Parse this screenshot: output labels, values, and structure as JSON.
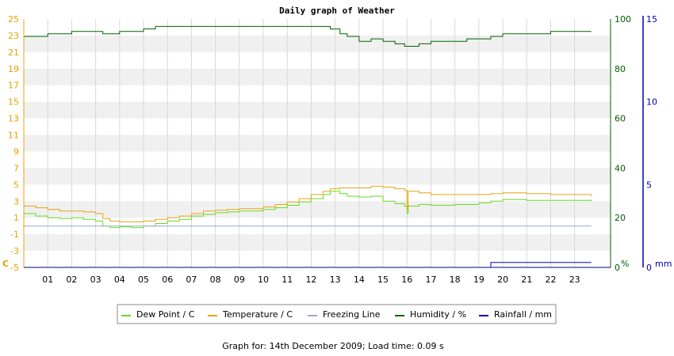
{
  "chart_data": {
    "type": "line",
    "title": "Daily graph of Weather",
    "x_ticks": [
      "01",
      "02",
      "03",
      "04",
      "05",
      "06",
      "07",
      "08",
      "09",
      "10",
      "11",
      "12",
      "13",
      "14",
      "15",
      "16",
      "17",
      "18",
      "19",
      "20",
      "21",
      "22",
      "23"
    ],
    "y_left": {
      "label": "C",
      "ticks": [
        25,
        23,
        21,
        19,
        17,
        15,
        13,
        11,
        9,
        7,
        5,
        3,
        1,
        -1,
        -3,
        -5
      ],
      "range": [
        -5,
        25
      ]
    },
    "y_humidity": {
      "label": "%",
      "ticks": [
        100,
        80,
        60,
        40,
        20,
        0
      ],
      "range": [
        0,
        100
      ]
    },
    "y_rain": {
      "label": "mm",
      "ticks": [
        15,
        10,
        5,
        0
      ],
      "range": [
        0,
        15
      ]
    },
    "grid": true,
    "legend_position": "bottom",
    "series": [
      {
        "name": "Dew Point / C",
        "axis": "left",
        "color": "#66dd22",
        "points": [
          [
            0,
            1.5
          ],
          [
            0.5,
            1.2
          ],
          [
            1,
            1.0
          ],
          [
            1.5,
            0.9
          ],
          [
            2,
            1.0
          ],
          [
            2.5,
            0.8
          ],
          [
            3,
            0.6
          ],
          [
            3.3,
            0.0
          ],
          [
            3.6,
            -0.2
          ],
          [
            4,
            -0.1
          ],
          [
            4.5,
            -0.2
          ],
          [
            5,
            0.0
          ],
          [
            5.5,
            0.3
          ],
          [
            6,
            0.6
          ],
          [
            6.5,
            0.8
          ],
          [
            7,
            1.2
          ],
          [
            7.5,
            1.4
          ],
          [
            8,
            1.6
          ],
          [
            8.5,
            1.7
          ],
          [
            9,
            1.8
          ],
          [
            10,
            2.0
          ],
          [
            10.5,
            2.2
          ],
          [
            11,
            2.5
          ],
          [
            11.5,
            2.9
          ],
          [
            12,
            3.3
          ],
          [
            12.5,
            3.8
          ],
          [
            12.8,
            4.2
          ],
          [
            13.2,
            3.9
          ],
          [
            13.5,
            3.6
          ],
          [
            14,
            3.5
          ],
          [
            14.5,
            3.6
          ],
          [
            15,
            3.0
          ],
          [
            15.5,
            2.7
          ],
          [
            15.9,
            2.4
          ],
          [
            16,
            1.5
          ],
          [
            16.05,
            2.4
          ],
          [
            16.5,
            2.6
          ],
          [
            17,
            2.5
          ],
          [
            18,
            2.6
          ],
          [
            19,
            2.8
          ],
          [
            19.5,
            3.0
          ],
          [
            20,
            3.2
          ],
          [
            21,
            3.1
          ],
          [
            22,
            3.1
          ],
          [
            23,
            3.1
          ],
          [
            23.7,
            3.0
          ]
        ]
      },
      {
        "name": "Temperature / C",
        "axis": "left",
        "color": "#e8a317",
        "points": [
          [
            0,
            2.4
          ],
          [
            0.5,
            2.2
          ],
          [
            1,
            2.0
          ],
          [
            1.5,
            1.8
          ],
          [
            2,
            1.8
          ],
          [
            2.5,
            1.7
          ],
          [
            3,
            1.5
          ],
          [
            3.3,
            0.9
          ],
          [
            3.6,
            0.6
          ],
          [
            4,
            0.5
          ],
          [
            4.5,
            0.5
          ],
          [
            5,
            0.6
          ],
          [
            5.5,
            0.8
          ],
          [
            6,
            1.0
          ],
          [
            6.5,
            1.2
          ],
          [
            7,
            1.5
          ],
          [
            7.5,
            1.8
          ],
          [
            8,
            1.9
          ],
          [
            8.5,
            2.0
          ],
          [
            9,
            2.1
          ],
          [
            10,
            2.3
          ],
          [
            10.5,
            2.6
          ],
          [
            11,
            2.9
          ],
          [
            11.5,
            3.3
          ],
          [
            12,
            3.8
          ],
          [
            12.5,
            4.2
          ],
          [
            12.8,
            4.5
          ],
          [
            13.2,
            4.6
          ],
          [
            13.5,
            4.6
          ],
          [
            14,
            4.6
          ],
          [
            14.5,
            4.8
          ],
          [
            15,
            4.7
          ],
          [
            15.5,
            4.5
          ],
          [
            15.9,
            4.3
          ],
          [
            16,
            2.0
          ],
          [
            16.05,
            4.2
          ],
          [
            16.5,
            4.0
          ],
          [
            17,
            3.8
          ],
          [
            18,
            3.8
          ],
          [
            19,
            3.8
          ],
          [
            19.5,
            3.9
          ],
          [
            20,
            4.0
          ],
          [
            21,
            3.9
          ],
          [
            22,
            3.8
          ],
          [
            23,
            3.8
          ],
          [
            23.7,
            3.6
          ]
        ]
      },
      {
        "name": "Freezing Line",
        "axis": "left",
        "color": "#99aacc",
        "points": [
          [
            0,
            0
          ],
          [
            23.7,
            0
          ]
        ]
      },
      {
        "name": "Humidity / %",
        "axis": "humidity",
        "color": "#006400",
        "points": [
          [
            0,
            93
          ],
          [
            1,
            94
          ],
          [
            1.5,
            94
          ],
          [
            2,
            95
          ],
          [
            3,
            95
          ],
          [
            3.3,
            94
          ],
          [
            3.6,
            94
          ],
          [
            4,
            95
          ],
          [
            4.5,
            95
          ],
          [
            5,
            96
          ],
          [
            5.5,
            97
          ],
          [
            6,
            97
          ],
          [
            7,
            97
          ],
          [
            8,
            97
          ],
          [
            9,
            97
          ],
          [
            10,
            97
          ],
          [
            11,
            97
          ],
          [
            12,
            97
          ],
          [
            12.5,
            97
          ],
          [
            12.8,
            96
          ],
          [
            13.2,
            94
          ],
          [
            13.5,
            93
          ],
          [
            14,
            91
          ],
          [
            14.5,
            92
          ],
          [
            15,
            91
          ],
          [
            15.5,
            90
          ],
          [
            15.9,
            89
          ],
          [
            16,
            89
          ],
          [
            16.5,
            90
          ],
          [
            17,
            91
          ],
          [
            18,
            91
          ],
          [
            18.5,
            92
          ],
          [
            19,
            92
          ],
          [
            19.5,
            93
          ],
          [
            20,
            94
          ],
          [
            21,
            94
          ],
          [
            22,
            95
          ],
          [
            23,
            95
          ],
          [
            23.7,
            95
          ]
        ]
      },
      {
        "name": "Rainfall / mm",
        "axis": "rain",
        "color": "#0000cc",
        "points": [
          [
            0,
            0
          ],
          [
            19.5,
            0
          ],
          [
            19.5,
            0.3
          ],
          [
            23.7,
            0.3
          ]
        ]
      }
    ],
    "legend": [
      {
        "label": "Dew Point / C",
        "color": "#66dd22"
      },
      {
        "label": "Temperature / C",
        "color": "#e8a317"
      },
      {
        "label": "Freezing Line",
        "color": "#99aacc"
      },
      {
        "label": "Humidity / %",
        "color": "#006400"
      },
      {
        "label": "Rainfall / mm",
        "color": "#0000cc"
      }
    ]
  },
  "footer": "Graph for: 14th December 2009; Load time: 0.09 s"
}
